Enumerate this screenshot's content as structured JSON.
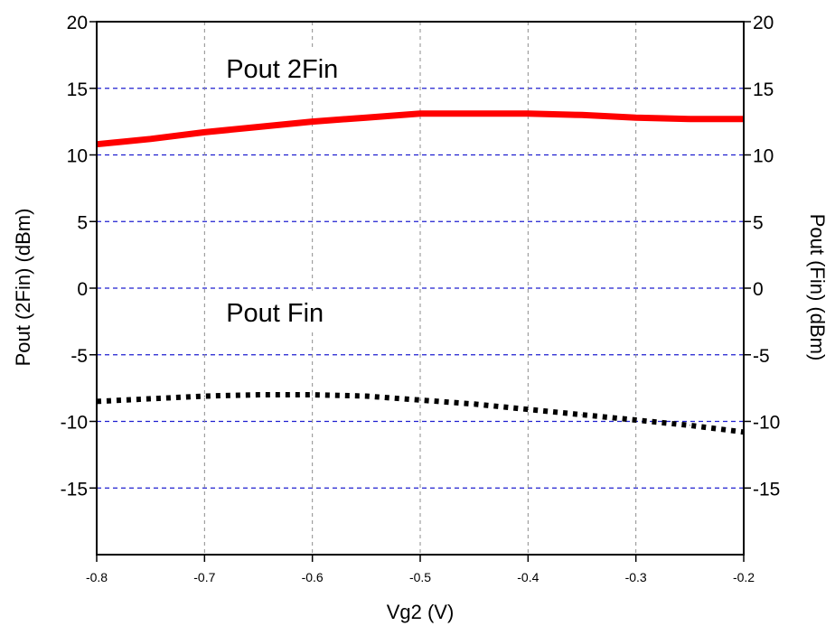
{
  "chart_data": {
    "type": "line",
    "title": "",
    "xlabel": "Vg2 (V)",
    "ylabel": "Pout (2Fin) (dBm)",
    "y2label": "Pout (Fin) (dBm)",
    "xlim": [
      -0.8,
      -0.2
    ],
    "ylim": [
      -20,
      20
    ],
    "x_ticks": [
      -0.8,
      -0.7,
      -0.6,
      -0.5,
      -0.4,
      -0.3,
      -0.2
    ],
    "x_tick_labels": [
      "-0.8",
      "-0.7",
      "-0.6",
      "-0.5",
      "-0.4",
      "-0.3",
      "-0.2"
    ],
    "y_ticks": [
      20,
      15,
      10,
      5,
      0,
      -5,
      -10,
      -15
    ],
    "y_tick_labels": [
      "20",
      "15",
      "10",
      "5",
      "0",
      "-5",
      "-10",
      "-15"
    ],
    "y2_tick_labels": [
      "20",
      "15",
      "10",
      "5",
      "0",
      "-5",
      "-10",
      "-15"
    ],
    "grid": true,
    "annotations": [
      {
        "text": "Pout 2Fin",
        "x": -0.68,
        "y": 15.8
      },
      {
        "text": "Pout Fin",
        "x": -0.68,
        "y": -2.5
      }
    ],
    "series": [
      {
        "axis": "left",
        "style": "solid",
        "color": "#ff0000",
        "x": [
          -0.8,
          -0.75,
          -0.7,
          -0.65,
          -0.6,
          -0.55,
          -0.5,
          -0.45,
          -0.4,
          -0.35,
          -0.3,
          -0.25,
          -0.2
        ],
        "values": [
          10.8,
          11.2,
          11.7,
          12.1,
          12.5,
          12.8,
          13.1,
          13.1,
          13.1,
          13.0,
          12.8,
          12.7,
          12.7
        ]
      },
      {
        "axis": "right",
        "style": "dotted",
        "color": "#000000",
        "x": [
          -0.8,
          -0.75,
          -0.7,
          -0.65,
          -0.6,
          -0.55,
          -0.5,
          -0.45,
          -0.4,
          -0.35,
          -0.3,
          -0.25,
          -0.2
        ],
        "values": [
          -8.5,
          -8.3,
          -8.1,
          -8.0,
          -8.0,
          -8.1,
          -8.4,
          -8.7,
          -9.1,
          -9.5,
          -9.9,
          -10.3,
          -10.8
        ]
      }
    ]
  }
}
